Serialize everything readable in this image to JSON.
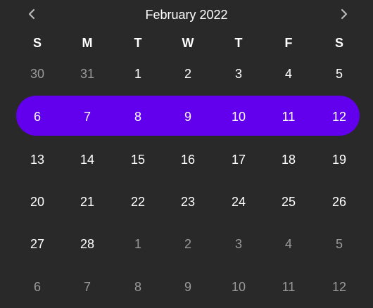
{
  "calendar": {
    "title": "February 2022",
    "weekdays": [
      "S",
      "M",
      "T",
      "W",
      "T",
      "F",
      "S"
    ],
    "selected_week_index": 1,
    "accent_color": "#6200ee",
    "background_color": "#292929",
    "prev_icon": "chevron-left-icon",
    "next_icon": "chevron-right-icon",
    "weeks": [
      [
        {
          "label": "30",
          "outside": true
        },
        {
          "label": "31",
          "outside": true
        },
        {
          "label": "1",
          "outside": false
        },
        {
          "label": "2",
          "outside": false
        },
        {
          "label": "3",
          "outside": false
        },
        {
          "label": "4",
          "outside": false
        },
        {
          "label": "5",
          "outside": false
        }
      ],
      [
        {
          "label": "6",
          "outside": false
        },
        {
          "label": "7",
          "outside": false
        },
        {
          "label": "8",
          "outside": false
        },
        {
          "label": "9",
          "outside": false
        },
        {
          "label": "10",
          "outside": false
        },
        {
          "label": "11",
          "outside": false
        },
        {
          "label": "12",
          "outside": false
        }
      ],
      [
        {
          "label": "13",
          "outside": false
        },
        {
          "label": "14",
          "outside": false
        },
        {
          "label": "15",
          "outside": false
        },
        {
          "label": "16",
          "outside": false
        },
        {
          "label": "17",
          "outside": false
        },
        {
          "label": "18",
          "outside": false
        },
        {
          "label": "19",
          "outside": false
        }
      ],
      [
        {
          "label": "20",
          "outside": false
        },
        {
          "label": "21",
          "outside": false
        },
        {
          "label": "22",
          "outside": false
        },
        {
          "label": "23",
          "outside": false
        },
        {
          "label": "24",
          "outside": false
        },
        {
          "label": "25",
          "outside": false
        },
        {
          "label": "26",
          "outside": false
        }
      ],
      [
        {
          "label": "27",
          "outside": false
        },
        {
          "label": "28",
          "outside": false
        },
        {
          "label": "1",
          "outside": true
        },
        {
          "label": "2",
          "outside": true
        },
        {
          "label": "3",
          "outside": true
        },
        {
          "label": "4",
          "outside": true
        },
        {
          "label": "5",
          "outside": true
        }
      ],
      [
        {
          "label": "6",
          "outside": true
        },
        {
          "label": "7",
          "outside": true
        },
        {
          "label": "8",
          "outside": true
        },
        {
          "label": "9",
          "outside": true
        },
        {
          "label": "10",
          "outside": true
        },
        {
          "label": "11",
          "outside": true
        },
        {
          "label": "12",
          "outside": true
        }
      ]
    ]
  }
}
